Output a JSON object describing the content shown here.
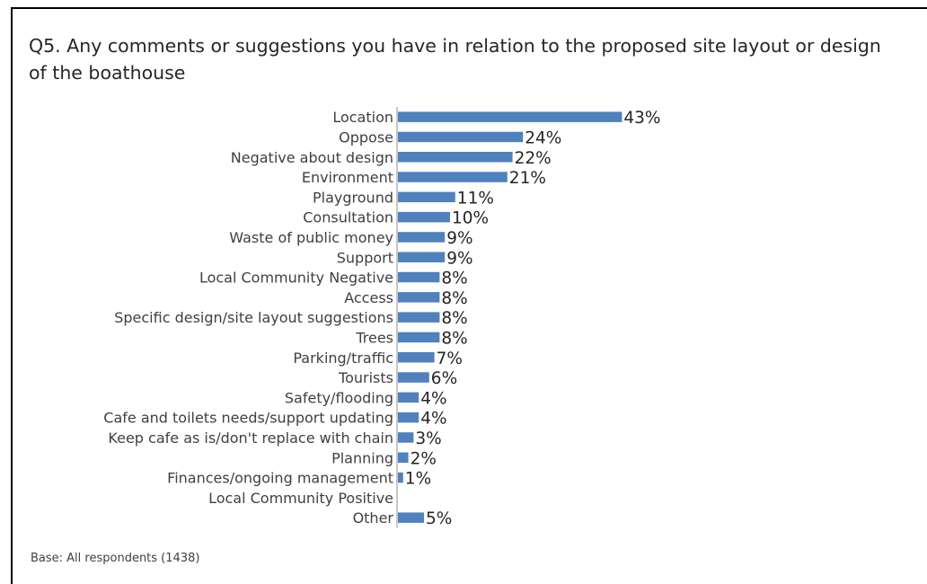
{
  "chart_data": {
    "type": "bar",
    "orientation": "horizontal",
    "title": "Q5. Any comments or suggestions you have in relation to the proposed site layout or design of the boathouse",
    "categories": [
      "Location",
      "Oppose",
      "Negative about design",
      "Environment",
      "Playground",
      "Consultation",
      "Waste of public money",
      "Support",
      "Local Community Negative",
      "Access",
      "Specific design/site layout suggestions",
      "Trees",
      "Parking/traffic",
      "Tourists",
      "Safety/flooding",
      "Cafe and toilets needs/support updating",
      "Keep cafe as is/don't replace with chain",
      "Planning",
      "Finances/ongoing management",
      "Local Community Positive",
      "Other"
    ],
    "values": [
      43,
      24,
      22,
      21,
      11,
      10,
      9,
      9,
      8,
      8,
      8,
      8,
      7,
      6,
      4,
      4,
      3,
      2,
      1,
      0,
      5
    ],
    "labels": [
      "43%",
      "24%",
      "22%",
      "21%",
      "11%",
      "10%",
      "9%",
      "9%",
      "8%",
      "8%",
      "8%",
      "8%",
      "7%",
      "6%",
      "4%",
      "4%",
      "3%",
      "2%",
      "1%",
      "",
      "5%"
    ],
    "unit": "%",
    "bar_color": "#4f81bd",
    "grid": false,
    "legend": "none"
  },
  "footnote": "Base: All respondents (1438)"
}
